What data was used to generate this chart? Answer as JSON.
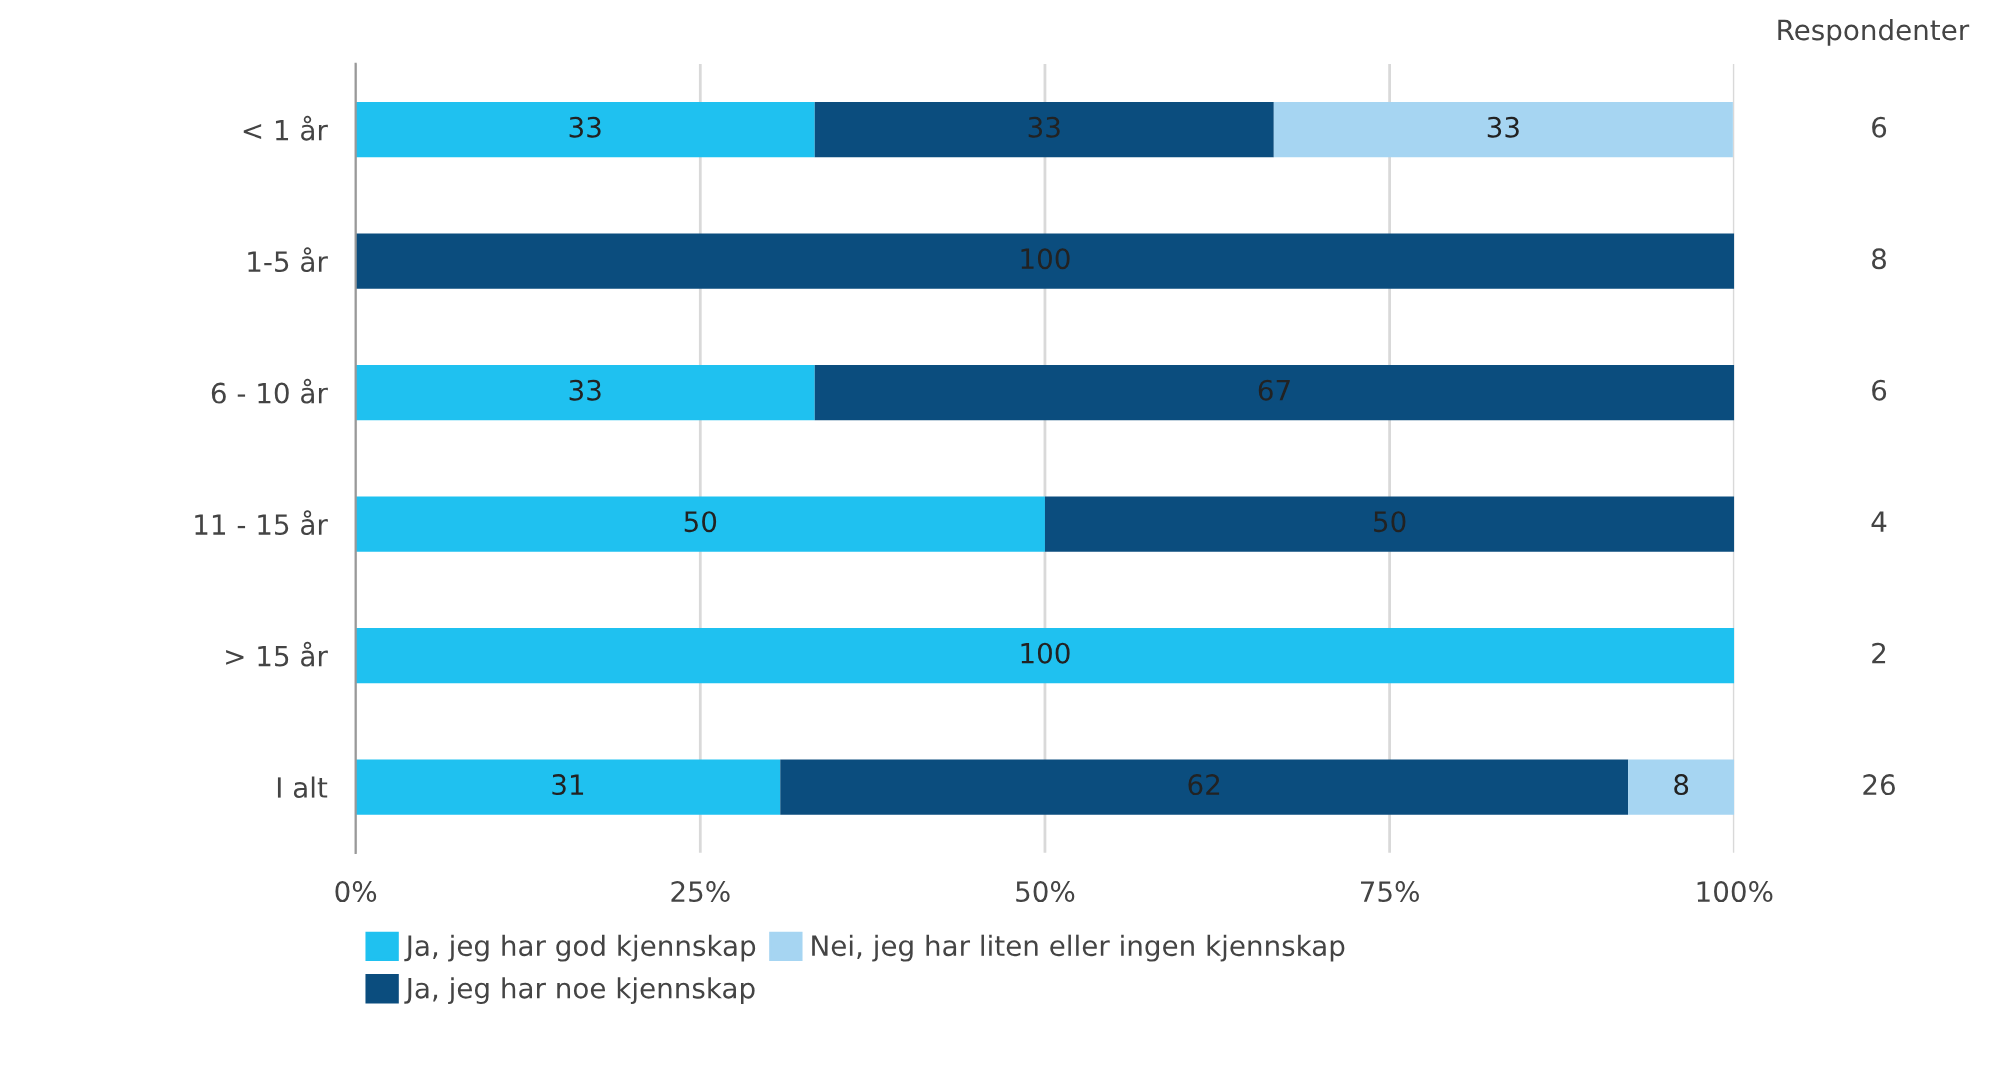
{
  "chart_data": {
    "type": "bar",
    "orientation": "horizontal",
    "stacked": true,
    "categories": [
      "< 1 år",
      "1-5 år",
      "6 - 10 år",
      "11 - 15 år",
      "> 15 år",
      "I alt"
    ],
    "series": [
      {
        "name": "Ja, jeg har god kjennskap",
        "color": "#1fc1f0",
        "values": [
          33.3,
          null,
          33.3,
          50,
          100,
          30.8
        ],
        "value_labels": [
          "33",
          null,
          "33",
          "50",
          "100",
          "31"
        ]
      },
      {
        "name": "Ja, jeg har noe kjennskap",
        "color": "#0b4d7e",
        "values": [
          33.3,
          100,
          66.7,
          50,
          null,
          61.5
        ],
        "value_labels": [
          "33",
          "100",
          "67",
          "50",
          null,
          "62"
        ]
      },
      {
        "name": "Nei, jeg har liten eller ingen kjennskap",
        "color": "#a6d5f2",
        "values": [
          33.3,
          null,
          null,
          null,
          null,
          7.7
        ],
        "value_labels": [
          "33",
          null,
          null,
          null,
          null,
          "8"
        ]
      }
    ],
    "xlim": [
      0,
      100
    ],
    "xticks": [
      {
        "value": 0,
        "label": "0%"
      },
      {
        "value": 25,
        "label": "25%"
      },
      {
        "value": 50,
        "label": "50%"
      },
      {
        "value": 75,
        "label": "75%"
      },
      {
        "value": 100,
        "label": "100%"
      }
    ],
    "grid": "x",
    "legend": "bottom",
    "annotations": [
      "Respondenter",
      "6",
      "8",
      "6",
      "4",
      "2",
      "26"
    ]
  }
}
